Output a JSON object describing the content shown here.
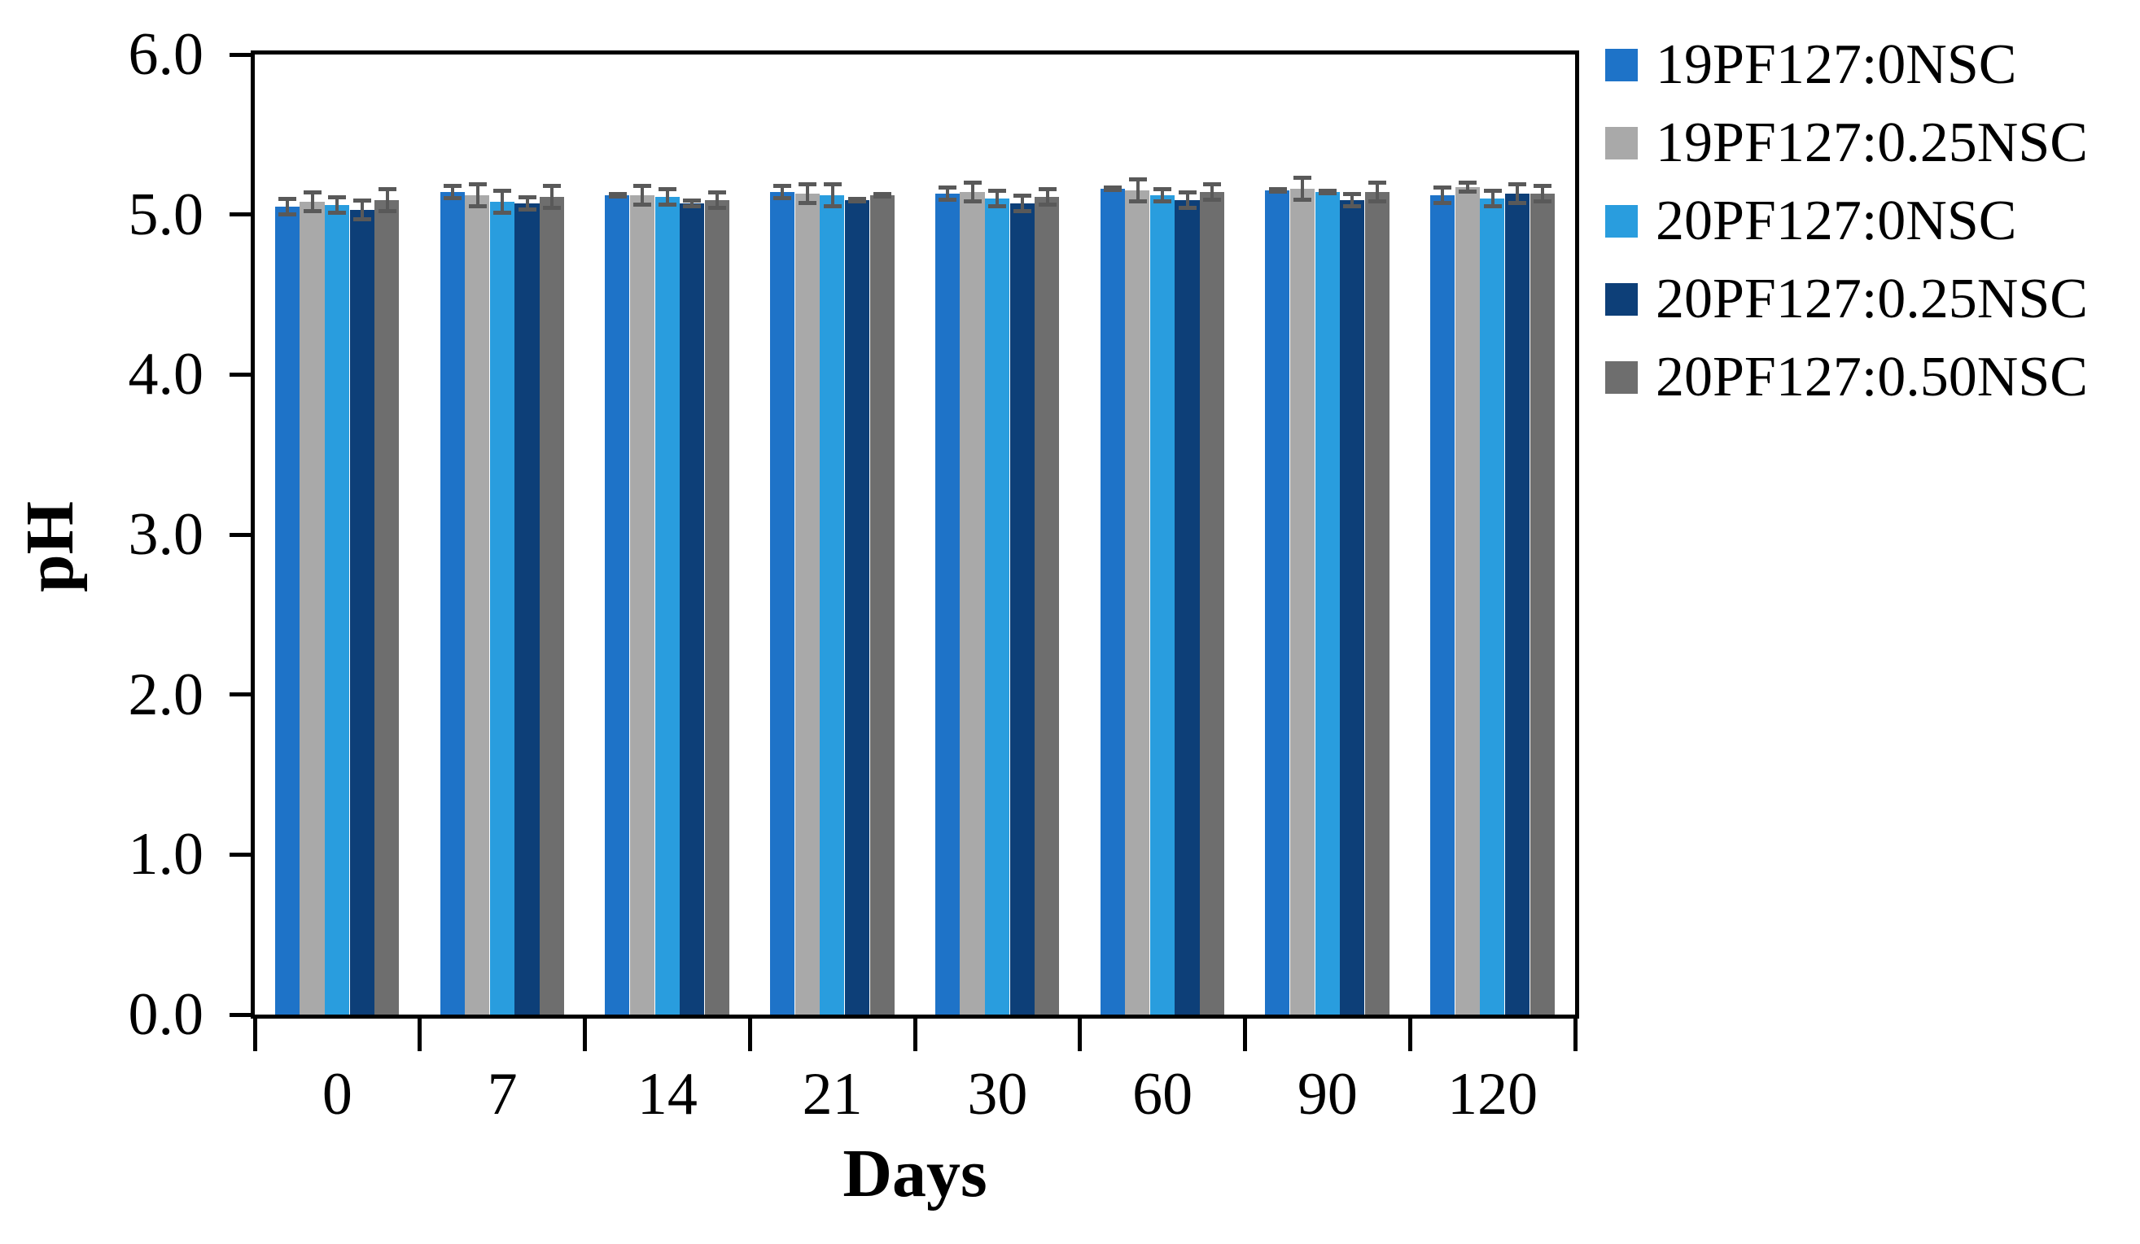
{
  "figure": {
    "title": "",
    "y_axis_label": "pH",
    "x_axis_label": "Days"
  },
  "chart_data": {
    "type": "bar",
    "title": "",
    "xlabel": "Days",
    "ylabel": "pH",
    "ylim": [
      0.0,
      6.0
    ],
    "ytick_step": 1.0,
    "ytick_labels": [
      "0.0",
      "1.0",
      "2.0",
      "3.0",
      "4.0",
      "5.0",
      "6.0"
    ],
    "categories": [
      "0",
      "7",
      "14",
      "21",
      "30",
      "60",
      "90",
      "120"
    ],
    "grid": false,
    "legend_position": "top-right",
    "axis_color": "#000000",
    "error_bar_color": "#595959",
    "background_color": "#ffffff",
    "series": [
      {
        "name": "19PF127:0NSC",
        "color": "#1e73c8",
        "values": [
          5.05,
          5.14,
          5.12,
          5.14,
          5.13,
          5.16,
          5.15,
          5.12
        ],
        "errors": [
          0.05,
          0.04,
          0.01,
          0.04,
          0.04,
          0.01,
          0.01,
          0.05
        ]
      },
      {
        "name": "19PF127:0.25NSC",
        "color": "#a9a9a9",
        "values": [
          5.08,
          5.12,
          5.12,
          5.13,
          5.14,
          5.15,
          5.16,
          5.17
        ],
        "errors": [
          0.06,
          0.07,
          0.06,
          0.06,
          0.06,
          0.07,
          0.07,
          0.03
        ]
      },
      {
        "name": "20PF127:0NSC",
        "color": "#299dde",
        "values": [
          5.06,
          5.08,
          5.11,
          5.12,
          5.1,
          5.12,
          5.14,
          5.1
        ],
        "errors": [
          0.05,
          0.07,
          0.05,
          0.07,
          0.05,
          0.04,
          0.01,
          0.05
        ]
      },
      {
        "name": "20PF127:0.25NSC",
        "color": "#0d3f78",
        "values": [
          5.03,
          5.07,
          5.07,
          5.09,
          5.07,
          5.09,
          5.09,
          5.13
        ],
        "errors": [
          0.06,
          0.04,
          0.02,
          0.01,
          0.05,
          0.05,
          0.04,
          0.06
        ]
      },
      {
        "name": "20PF127:0.50NSC",
        "color": "#6e6e6e",
        "values": [
          5.09,
          5.11,
          5.09,
          5.12,
          5.11,
          5.14,
          5.14,
          5.13
        ],
        "errors": [
          0.07,
          0.07,
          0.05,
          0.01,
          0.05,
          0.05,
          0.06,
          0.05
        ]
      }
    ]
  }
}
